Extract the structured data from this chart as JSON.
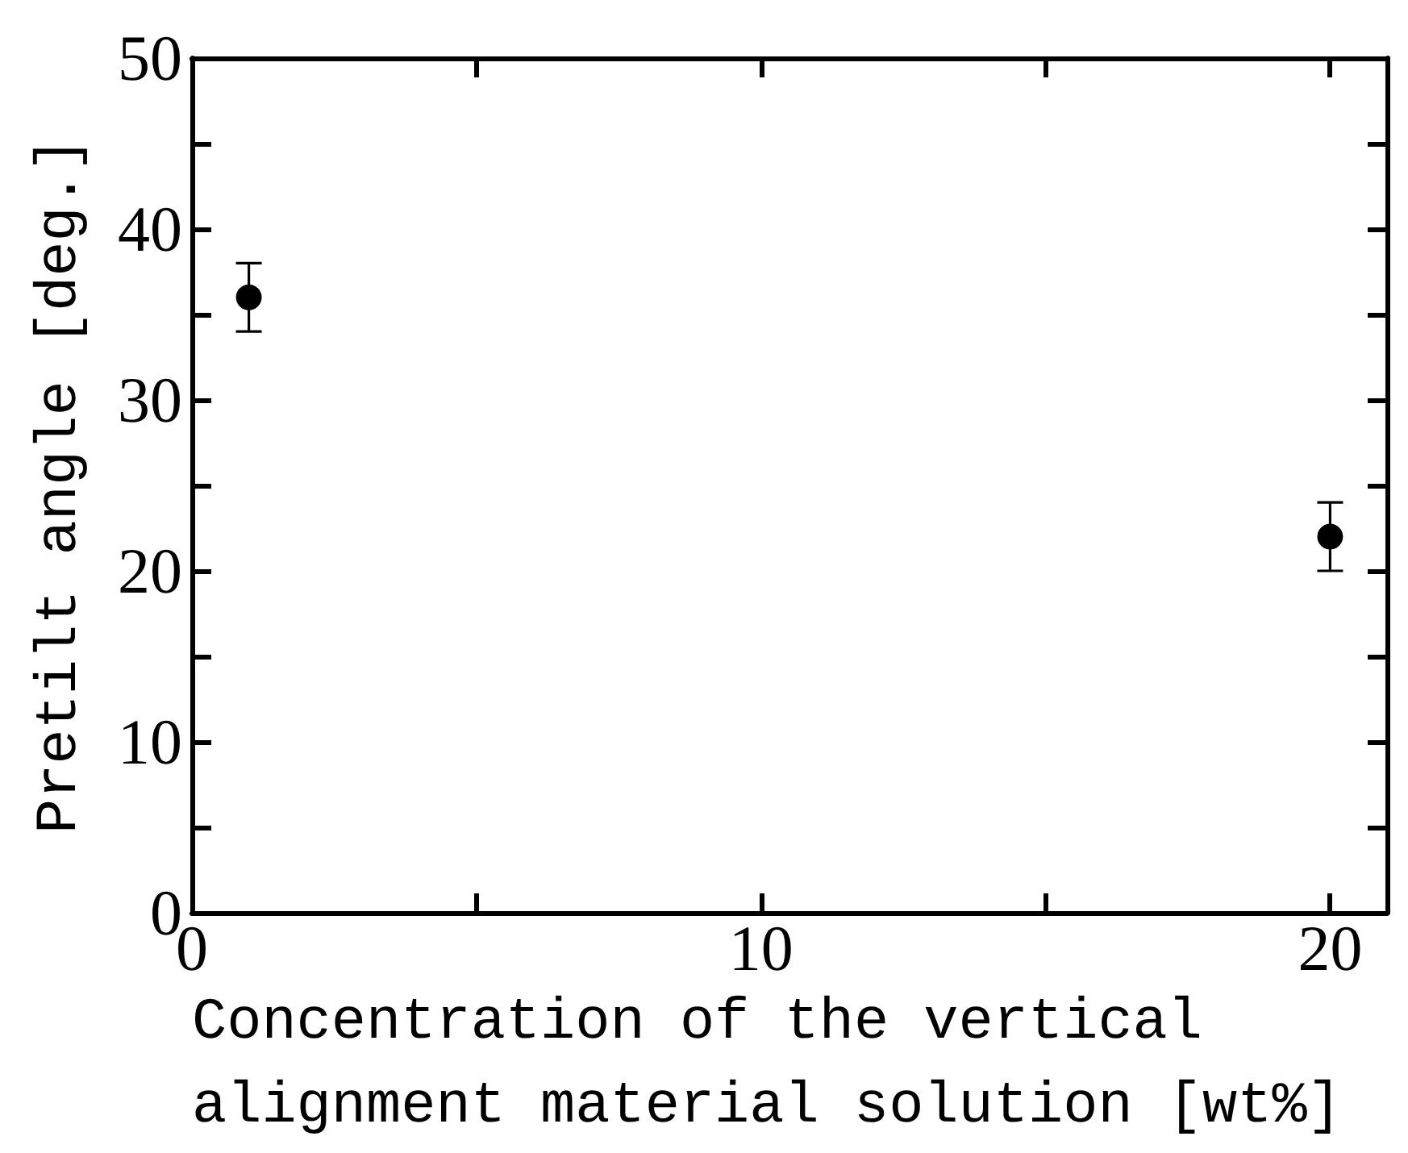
{
  "chart_data": {
    "type": "scatter",
    "xlabel": "Concentration of the vertical alignment material solution [wt%]",
    "ylabel": "Pretilt angle [deg.]",
    "x": [
      1,
      20
    ],
    "values": [
      36,
      22
    ],
    "errors": [
      2,
      2
    ],
    "color": "#000000",
    "xlim": [
      0,
      21
    ],
    "xticks": [
      0,
      {
        "value": 5,
        "label": null
      },
      10,
      {
        "value": 15,
        "label": null
      },
      20
    ],
    "ylim": [
      0,
      50
    ],
    "yticks": [
      0,
      {
        "value": 5,
        "label": null
      },
      10,
      {
        "value": 15,
        "label": null
      },
      20,
      {
        "value": 25,
        "label": null
      },
      30,
      {
        "value": 35,
        "label": null
      },
      40,
      {
        "value": 45,
        "label": null
      },
      50
    ],
    "marker": "circle",
    "grid": false
  }
}
